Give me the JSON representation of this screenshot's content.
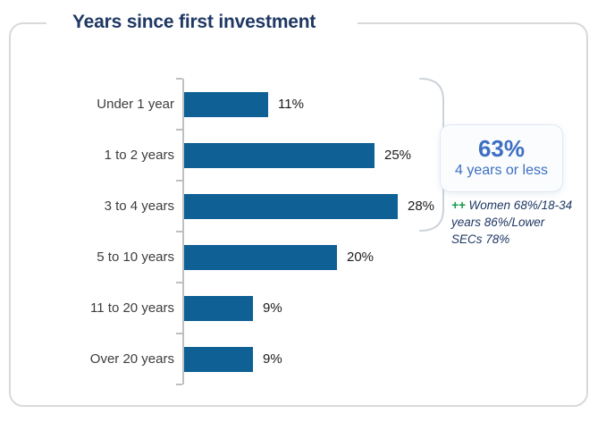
{
  "card": {
    "title": "Years since first investment"
  },
  "chart_data": {
    "type": "bar",
    "orientation": "horizontal",
    "title": "Years since first investment",
    "categories": [
      "Under 1 year",
      "1 to 2 years",
      "3 to 4 years",
      "5 to 10 years",
      "11 to 20 years",
      "Over 20 years"
    ],
    "values": [
      11,
      25,
      28,
      20,
      9,
      9
    ],
    "value_suffix": "%",
    "xlim": [
      0,
      30
    ],
    "grid": false,
    "legend": false,
    "data_labels": "outside-end"
  },
  "callout": {
    "headline": "63%",
    "subline": "4 years or less"
  },
  "annotation": {
    "marker": "++",
    "text": "Women 68%/18-34 years 86%/Lower SECs 78%"
  },
  "colors": {
    "bar": "#0f6094",
    "title": "#1f3864",
    "accent_blue": "#3e6fc2",
    "marker_green": "#169a4e",
    "axis": "#bfbfbf",
    "category_label": "#3d3d3d",
    "value_label": "#1b1b1b",
    "card_border": "#d9d9d9",
    "bracket": "#cdd3da",
    "callout_border": "#e2e9f3",
    "callout_bg": "#fafcfe"
  }
}
